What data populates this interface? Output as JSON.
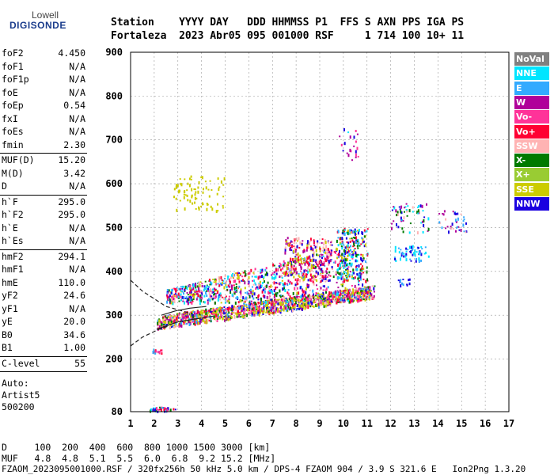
{
  "logo": {
    "line1": "Lowell",
    "line2": "DIGISONDE"
  },
  "header": {
    "line1": "Station    YYYY DAY   DDD HHMMSS P1  FFS S AXN PPS IGA PS",
    "line2": "Fortaleza  2023 Abr05 095 001000 RSF     1 714 100 10+ 11"
  },
  "params": {
    "group1": [
      {
        "label": "foF2",
        "value": "4.450"
      },
      {
        "label": "foF1",
        "value": "N/A"
      },
      {
        "label": "foF1p",
        "value": "N/A"
      },
      {
        "label": "foE",
        "value": "N/A"
      },
      {
        "label": "foEp",
        "value": "0.54"
      },
      {
        "label": "fxI",
        "value": "N/A"
      },
      {
        "label": "foEs",
        "value": "N/A"
      },
      {
        "label": "fmin",
        "value": "2.30"
      }
    ],
    "group2": [
      {
        "label": "MUF(D)",
        "value": "15.20"
      },
      {
        "label": "M(D)",
        "value": "3.42"
      },
      {
        "label": "D",
        "value": "N/A"
      }
    ],
    "group3": [
      {
        "label": "h`F",
        "value": "295.0"
      },
      {
        "label": "h`F2",
        "value": "295.0"
      },
      {
        "label": "h`E",
        "value": "N/A"
      },
      {
        "label": "h`Es",
        "value": "N/A"
      }
    ],
    "group4": [
      {
        "label": "hmF2",
        "value": "294.1"
      },
      {
        "label": "hmF1",
        "value": "N/A"
      },
      {
        "label": "hmE",
        "value": "110.0"
      },
      {
        "label": "yF2",
        "value": "24.6"
      },
      {
        "label": "yF1",
        "value": "N/A"
      },
      {
        "label": "yE",
        "value": "20.0"
      },
      {
        "label": "B0",
        "value": "34.6"
      },
      {
        "label": "B1",
        "value": "1.00"
      }
    ],
    "clevel": {
      "label": "C-level",
      "value": "55"
    },
    "auto": [
      "Auto:",
      "Artist5",
      "500200"
    ]
  },
  "legend": [
    {
      "label": "NoVal",
      "color": "#808080"
    },
    {
      "label": "NNE",
      "color": "#00e5ff"
    },
    {
      "label": "E",
      "color": "#33aaff"
    },
    {
      "label": "W",
      "color": "#b0009a"
    },
    {
      "label": "Vo-",
      "color": "#ff3399"
    },
    {
      "label": "Vo+",
      "color": "#ff0033"
    },
    {
      "label": "SSW",
      "color": "#ffb3b3"
    },
    {
      "label": "X-",
      "color": "#007a00"
    },
    {
      "label": "X+",
      "color": "#99cc33"
    },
    {
      "label": "SSE",
      "color": "#cccc00"
    },
    {
      "label": "NNW",
      "color": "#1a00e0"
    }
  ],
  "bottom": {
    "d_line": "D     100  200  400  600  800 1000 1500 3000 [km]",
    "muf_line": "MUF   4.8  4.8  5.1  5.5  6.0  6.8  9.2 15.2 [MHz]",
    "footer": "FZAOM_2023095001000.RSF / 320fx256h 50 kHz 5.0 km / DPS-4 FZAOM 904 / 3.9 S 321.6 E   Ion2Png 1.3.20"
  },
  "chart_data": {
    "type": "scatter",
    "title": "",
    "xlabel": "",
    "ylabel": "",
    "xlim": [
      1,
      17
    ],
    "ylim": [
      80,
      900
    ],
    "xticks": [
      1,
      2,
      3,
      4,
      5,
      6,
      7,
      8,
      9,
      10,
      11,
      12,
      13,
      14,
      15,
      16,
      17
    ],
    "yticks": [
      80,
      200,
      300,
      400,
      500,
      600,
      700,
      800,
      900
    ],
    "clusters": [
      {
        "name": "E-layer echoes",
        "x": [
          1.7,
          2.9
        ],
        "y": [
          82,
          92
        ],
        "n": 40,
        "colors": [
          "#ff0033",
          "#ff3399",
          "#007a00",
          "#1a00e0",
          "#00e5ff"
        ]
      },
      {
        "name": "low F trace",
        "x": [
          1.9,
          2.4
        ],
        "y": [
          215,
          225
        ],
        "n": 14,
        "colors": [
          "#ff0033",
          "#33aaff",
          "#ff3399"
        ]
      },
      {
        "name": "F2 main trace",
        "x": [
          2.1,
          11.3
        ],
        "y": [
          270,
          350
        ],
        "n": 1300,
        "colors": [
          "#ff0033",
          "#ff3399",
          "#b0009a",
          "#cccc00",
          "#cccc00",
          "#cccc00",
          "#33aaff",
          "#1a00e0",
          "#007a00",
          "#ffb3b3"
        ]
      },
      {
        "name": "F2 spread",
        "x": [
          2.5,
          10.8
        ],
        "y": [
          330,
          470
        ],
        "n": 900,
        "colors": [
          "#ff0033",
          "#b0009a",
          "#ff3399",
          "#1a00e0",
          "#33aaff",
          "#cccc00",
          "#007a00",
          "#ffb3b3",
          "#00e5ff"
        ]
      },
      {
        "name": "spread F plumes",
        "x": [
          7.5,
          9.5
        ],
        "y": [
          380,
          480
        ],
        "n": 260,
        "colors": [
          "#ff0033",
          "#b0009a",
          "#ffb3b3",
          "#1a00e0",
          "#cccc00"
        ]
      },
      {
        "name": "oblique echoes 10 MHz",
        "x": [
          9.7,
          11.0
        ],
        "y": [
          380,
          500
        ],
        "n": 220,
        "colors": [
          "#1a00e0",
          "#33aaff",
          "#cccc00",
          "#007a00",
          "#ff0033",
          "#00e5ff"
        ]
      },
      {
        "name": "second hop",
        "x": [
          2.8,
          5.0
        ],
        "y": [
          540,
          620
        ],
        "n": 80,
        "colors": [
          "#cccc00",
          "#cccc00",
          "#cccc00"
        ]
      },
      {
        "name": "high echoes 10 MHz",
        "x": [
          9.8,
          10.6
        ],
        "y": [
          655,
          730
        ],
        "n": 22,
        "colors": [
          "#b0009a",
          "#ff3399",
          "#1a00e0",
          "#00e5ff"
        ]
      },
      {
        "name": "oblique group A",
        "x": [
          12.0,
          13.6
        ],
        "y": [
          490,
          560
        ],
        "n": 60,
        "colors": [
          "#007a00",
          "#1a00e0",
          "#00e5ff",
          "#b0009a",
          "#ffb3b3"
        ]
      },
      {
        "name": "oblique group B",
        "x": [
          12.1,
          13.6
        ],
        "y": [
          425,
          460
        ],
        "n": 60,
        "colors": [
          "#1a00e0",
          "#33aaff",
          "#00e5ff"
        ]
      },
      {
        "name": "oblique group C",
        "x": [
          14.0,
          15.2
        ],
        "y": [
          490,
          540
        ],
        "n": 40,
        "colors": [
          "#1a00e0",
          "#b0009a",
          "#33aaff",
          "#ffb3b3"
        ]
      },
      {
        "name": "oblique group D",
        "x": [
          12.2,
          12.8
        ],
        "y": [
          365,
          385
        ],
        "n": 14,
        "colors": [
          "#1a00e0",
          "#33aaff"
        ]
      }
    ],
    "profile_curves": [
      {
        "points": [
          [
            1,
            380
          ],
          [
            1.5,
            355
          ],
          [
            2.5,
            320
          ],
          [
            3.5,
            305
          ]
        ],
        "style": "dashed"
      },
      {
        "points": [
          [
            1,
            230
          ],
          [
            1.5,
            250
          ],
          [
            2.2,
            268
          ],
          [
            2.6,
            275
          ]
        ],
        "style": "dashed"
      },
      {
        "points": [
          [
            2.1,
            268
          ],
          [
            3.0,
            285
          ],
          [
            3.8,
            292
          ],
          [
            4.5,
            298
          ]
        ],
        "style": "solid"
      },
      {
        "points": [
          [
            2.3,
            300
          ],
          [
            2.9,
            310
          ],
          [
            3.5,
            316
          ],
          [
            4.2,
            320
          ]
        ],
        "style": "solid"
      }
    ]
  }
}
